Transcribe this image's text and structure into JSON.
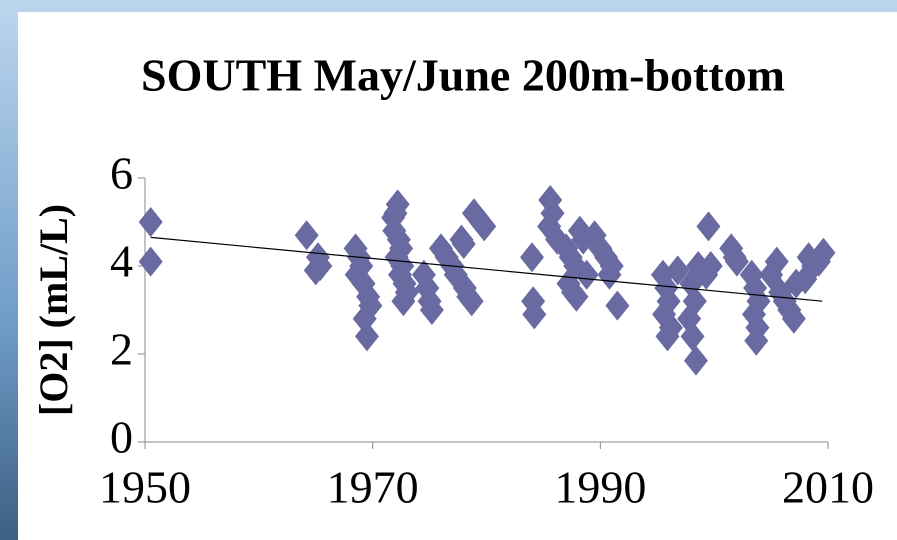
{
  "chart_data": {
    "type": "scatter",
    "title": "SOUTH May/June  200m-bottom",
    "ylabel": "[O2] (mL/L)",
    "color": "#6a6aa2",
    "x": [
      1950.5,
      1950.5,
      1964.2,
      1965.2,
      1965.4,
      1965,
      1968.5,
      1968.8,
      1969,
      1968.6,
      1969.2,
      1969.6,
      1969.8,
      1969.3,
      1969.5,
      1971.8,
      1972.2,
      1972,
      1971.9,
      1972.3,
      1972.5,
      1972.1,
      1972.6,
      1972.4,
      1972.8,
      1973,
      1972.7,
      1974.5,
      1974.8,
      1975,
      1975.2,
      1976,
      1976.5,
      1977,
      1977.3,
      1977.8,
      1978,
      1978.1,
      1978.4,
      1978.7,
      1978.9,
      1979.5,
      1979.8,
      1984,
      1984.1,
      1984.2,
      1985.6,
      1985.8,
      1985.5,
      1986.2,
      1987,
      1987.4,
      1987.8,
      1988.2,
      1988.5,
      1987.2,
      1987.6,
      1987.9,
      1988.8,
      1989.5,
      1990,
      1990.5,
      1991,
      1990.8,
      1991.5,
      1995.5,
      1995.8,
      1996,
      1995.6,
      1996.2,
      1995.9,
      1996.8,
      1998,
      1998.3,
      1997.8,
      1998.1,
      1998.4,
      1998.6,
      1999.5,
      1999.7,
      1999.3,
      2001.5,
      2001.8,
      2002,
      2003.3,
      2003.6,
      2003.9,
      2003.5,
      2003.8,
      2003.7,
      2005.5,
      2005,
      2005.8,
      2006.2,
      2006.6,
      2007,
      2007.2,
      2008.3,
      2008.7,
      2009.2,
      2009.6,
      2008
    ],
    "values": [
      5.0,
      4.1,
      4.7,
      4.2,
      4.0,
      3.9,
      4.4,
      4.2,
      4.0,
      3.8,
      3.6,
      3.3,
      3.1,
      2.8,
      2.4,
      5.1,
      5.4,
      5.2,
      4.8,
      4.6,
      4.4,
      4.2,
      4.0,
      3.8,
      3.6,
      3.4,
      3.2,
      3.8,
      3.5,
      3.2,
      3.0,
      4.4,
      4.2,
      4.0,
      3.8,
      4.6,
      4.5,
      3.5,
      3.3,
      3.2,
      5.2,
      5.0,
      4.9,
      4.2,
      3.2,
      2.9,
      5.5,
      5.2,
      4.9,
      4.6,
      4.4,
      4.2,
      4.0,
      4.8,
      4.6,
      3.6,
      3.4,
      3.3,
      3.8,
      4.7,
      4.4,
      4.2,
      4.0,
      3.8,
      3.1,
      3.8,
      3.5,
      3.2,
      2.9,
      2.6,
      2.4,
      3.9,
      3.6,
      3.2,
      2.8,
      2.4,
      1.85,
      4.0,
      4.9,
      4.0,
      3.8,
      4.4,
      4.2,
      4.1,
      3.8,
      3.5,
      3.2,
      2.9,
      2.6,
      2.3,
      4.1,
      3.8,
      3.4,
      3.2,
      3.0,
      2.8,
      3.6,
      4.2,
      4.0,
      4.1,
      4.3,
      3.7
    ],
    "trend": {
      "x": [
        1950.5,
        2009.5
      ],
      "values": [
        4.65,
        3.2
      ],
      "color": "#000000"
    },
    "xlim": [
      1950,
      2010
    ],
    "xticks": [
      1950,
      1970,
      1990,
      2010
    ],
    "ylim": [
      0,
      6
    ],
    "yticks": [
      0,
      2,
      4,
      6
    ]
  }
}
